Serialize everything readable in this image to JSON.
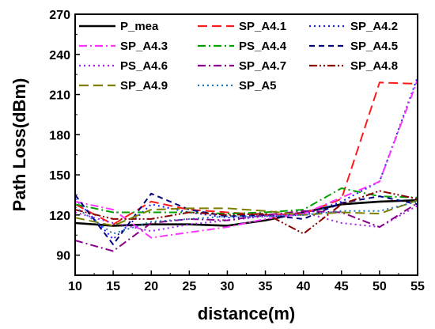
{
  "chart_data": {
    "type": "line",
    "xlabel": "distance(m)",
    "ylabel": "Path Loss(dBm)",
    "xlim": [
      10,
      55
    ],
    "ylim": [
      75,
      270
    ],
    "xticks": [
      "10",
      "15",
      "20",
      "25",
      "30",
      "35",
      "40",
      "45",
      "50",
      "55"
    ],
    "yticks": [
      "90",
      "120",
      "150",
      "180",
      "210",
      "240",
      "270"
    ],
    "grid": false,
    "legend_position": "top",
    "x": [
      10,
      15,
      20,
      25,
      30,
      35,
      40,
      45,
      50,
      55
    ],
    "series": [
      {
        "name": "P_mea",
        "color": "#000000",
        "dash": "solid",
        "values": [
          114,
          112,
          113,
          113,
          112,
          116,
          122,
          128,
          130,
          131
        ]
      },
      {
        "name": "SP_A4.1",
        "color": "#ff1a1a",
        "dash": "long-dash",
        "values": [
          128,
          113,
          130,
          124,
          122,
          120,
          121,
          132,
          219,
          218
        ]
      },
      {
        "name": "SP_A4.2",
        "color": "#1a1aff",
        "dash": "dot",
        "values": [
          132,
          102,
          128,
          122,
          118,
          119,
          120,
          130,
          145,
          223
        ]
      },
      {
        "name": "SP_A4.3",
        "color": "#ff33ff",
        "dash": "dash-dot",
        "values": [
          130,
          124,
          103,
          107,
          111,
          117,
          121,
          133,
          145,
          221
        ]
      },
      {
        "name": "PS_A4.4",
        "color": "#00a000",
        "dash": "dash-dot",
        "values": [
          128,
          122,
          122,
          122,
          121,
          122,
          124,
          140,
          134,
          133
        ]
      },
      {
        "name": "SP_A4.5",
        "color": "#000080",
        "dash": "dash",
        "values": [
          135,
          98,
          136,
          124,
          119,
          120,
          117,
          129,
          134,
          128
        ]
      },
      {
        "name": "PS_A4.6",
        "color": "#a020f0",
        "dash": "dot",
        "values": [
          122,
          114,
          108,
          113,
          116,
          119,
          122,
          114,
          111,
          127
        ]
      },
      {
        "name": "SP_A4.7",
        "color": "#8b008b",
        "dash": "dash-dot",
        "values": [
          101,
          93,
          114,
          117,
          116,
          120,
          123,
          122,
          111,
          129
        ]
      },
      {
        "name": "SP_A4.8",
        "color": "#8b0000",
        "dash": "dash-dot-dot",
        "values": [
          124,
          117,
          117,
          122,
          120,
          121,
          106,
          128,
          138,
          132
        ]
      },
      {
        "name": "SP_A4.9",
        "color": "#808000",
        "dash": "long-dash",
        "values": [
          118,
          112,
          124,
          125,
          125,
          123,
          120,
          122,
          121,
          131
        ]
      },
      {
        "name": "SP_A5",
        "color": "#1f77b4",
        "dash": "dot",
        "values": [
          126,
          106,
          115,
          117,
          119,
          119,
          120,
          123,
          123,
          130
        ]
      }
    ]
  }
}
